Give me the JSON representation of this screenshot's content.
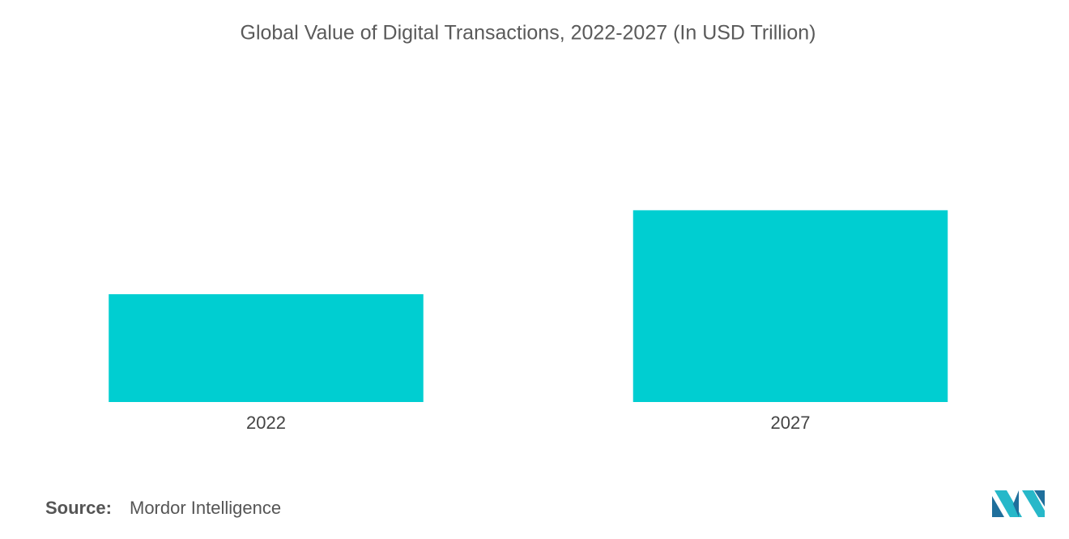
{
  "chart_data": {
    "type": "bar",
    "title": "Global Value of Digital Transactions, 2022-2027 (In  USD Trillion)",
    "categories": [
      "2022",
      "2027"
    ],
    "values": [
      9.5,
      16.9
    ],
    "color": "#00ced1",
    "ylim": [
      0,
      29
    ],
    "source_label": "Source:",
    "source": "Mordor Intelligence"
  }
}
